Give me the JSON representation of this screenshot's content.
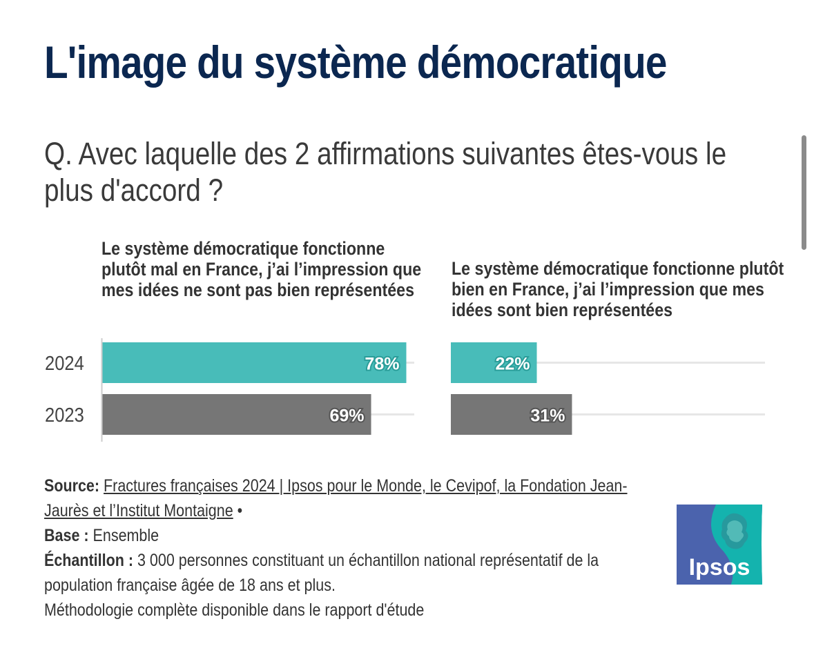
{
  "title": "L'image du système démocratique",
  "question": "Q. Avec laquelle des 2 affirmations suivantes êtes-vous le plus d'accord ?",
  "colors": {
    "teal": "#48bcb9",
    "gray": "#767676",
    "title": "#0b2750",
    "gridline": "#e6e6e6"
  },
  "chart_data": {
    "type": "bar",
    "orientation": "horizontal",
    "categories": [
      "2024",
      "2023"
    ],
    "xlim": [
      0,
      100
    ],
    "panels": [
      {
        "label": "Le système démocratique fonctionne plutôt mal en France, j’ai l’impression que mes idées ne sont pas bien représentées",
        "values": [
          78,
          69
        ],
        "data_labels": [
          "78%",
          "69%"
        ]
      },
      {
        "label": "Le système démocratique fonctionne plutôt bien en France, j’ai l’impression que mes idées sont bien représentées",
        "values": [
          22,
          31
        ],
        "data_labels": [
          "22%",
          "31%"
        ]
      }
    ]
  },
  "footer": {
    "source_label": "Source:",
    "source_link": "Fractures françaises 2024 | Ipsos pour le Monde, le Cevipof, la Fondation Jean-Jaurès et l’Institut Montaigne",
    "source_bullet": "•",
    "base_label": "Base :",
    "base_value": "Ensemble",
    "sample_label": "Échantillon :",
    "sample_value": "3 000 personnes constituant un échantillon national représentatif de la population française âgée de 18 ans et plus.",
    "methodology": "Méthodologie complète disponible dans le rapport d'étude"
  },
  "logo": {
    "text": "Ipsos",
    "icon": "ipsos-logo-icon"
  }
}
